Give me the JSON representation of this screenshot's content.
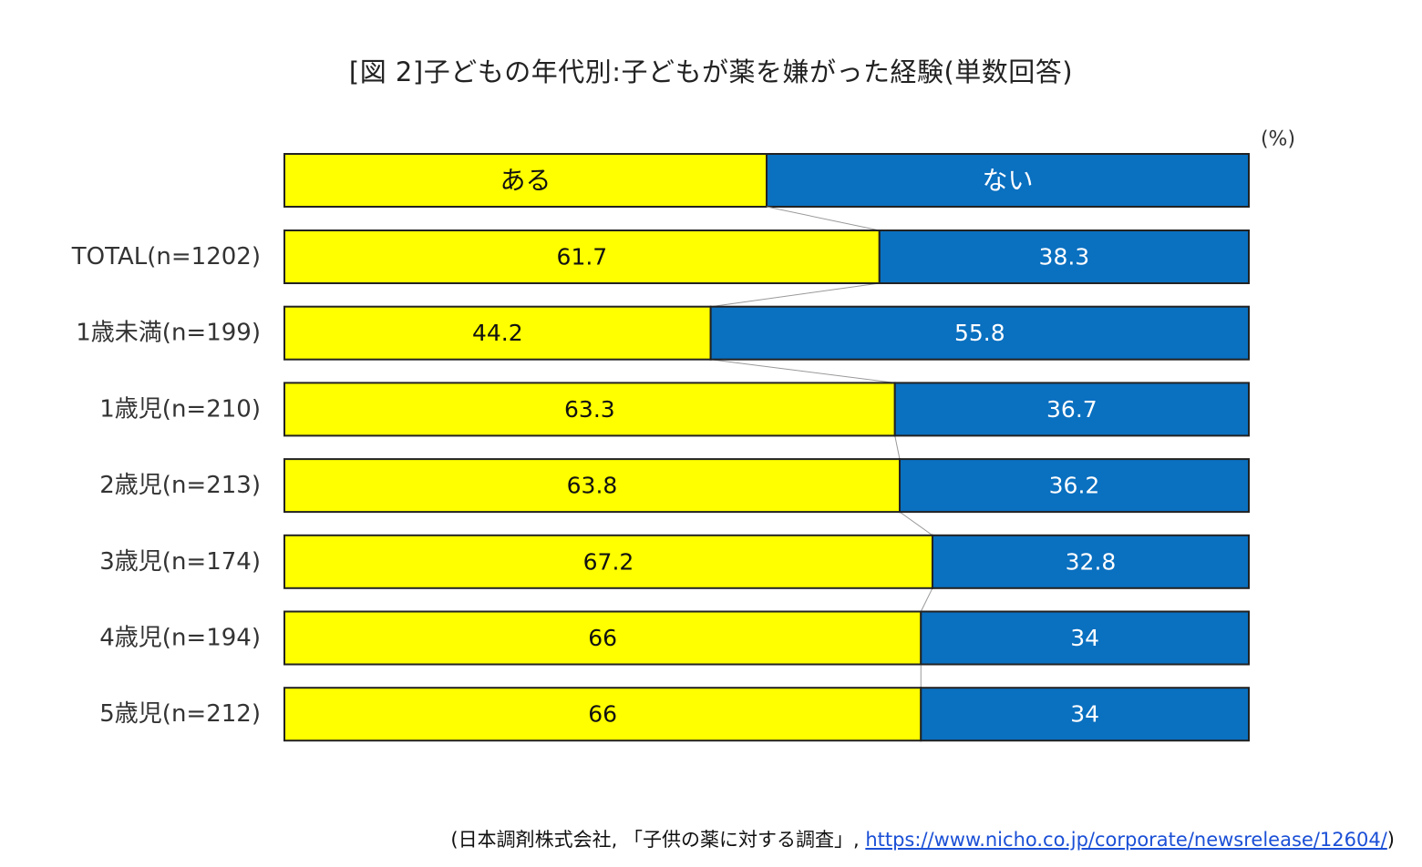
{
  "chart_data": {
    "type": "bar",
    "stacked": true,
    "orientation": "horizontal",
    "title": "[図 2]子どもの年代別:子どもが薬を嫌がった経験(単数回答)",
    "unit_label": "(%)",
    "legend_position": "top",
    "xlim": [
      0,
      100
    ],
    "categories": [
      "TOTAL(n=1202)",
      "1歳未満(n=199)",
      "1歳児(n=210)",
      "2歳児(n=213)",
      "3歳児(n=174)",
      "4歳児(n=194)",
      "5歳児(n=212)"
    ],
    "series": [
      {
        "name": "ある",
        "color": "#ffff00",
        "label_color": "#111111",
        "values": [
          61.7,
          44.2,
          63.3,
          63.8,
          67.2,
          66,
          66
        ]
      },
      {
        "name": "ない",
        "color": "#0a70c0",
        "label_color": "#ffffff",
        "values": [
          38.3,
          55.8,
          36.7,
          36.2,
          32.8,
          34,
          34
        ]
      }
    ],
    "value_labels": [
      [
        "61.7",
        "38.3"
      ],
      [
        "44.2",
        "55.8"
      ],
      [
        "63.3",
        "36.7"
      ],
      [
        "63.8",
        "36.2"
      ],
      [
        "67.2",
        "32.8"
      ],
      [
        "66",
        "34"
      ],
      [
        "66",
        "34"
      ]
    ]
  },
  "source": {
    "prefix": "(日本調剤株式会社, 「子供の薬に対する調査」, ",
    "url": "https://www.nicho.co.jp/corporate/newsrelease/12604/",
    "suffix": ")"
  }
}
